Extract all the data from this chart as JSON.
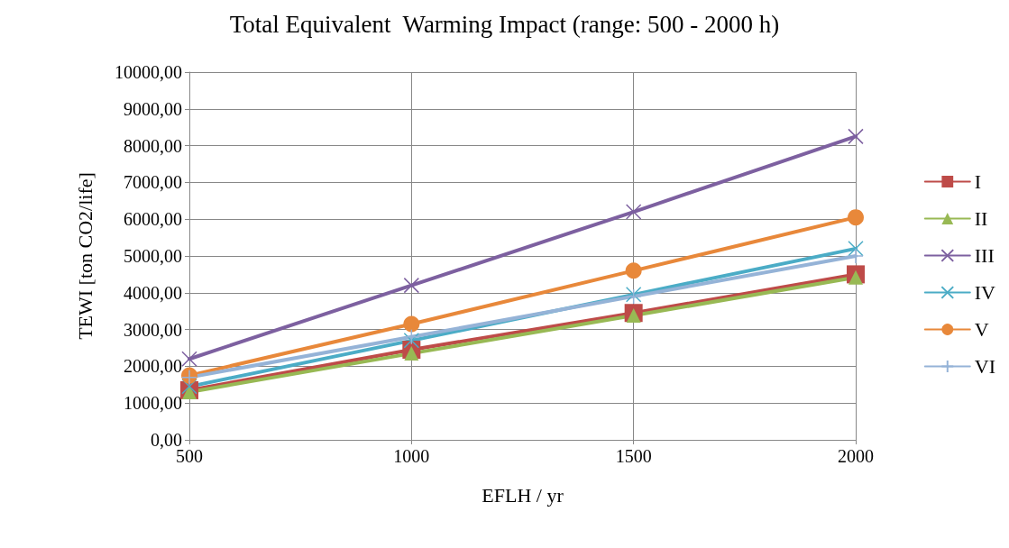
{
  "chart_data": {
    "type": "line",
    "title": "Total Equivalent  Warming Impact (range: 500 - 2000 h)",
    "xlabel": "EFLH / yr",
    "ylabel": "TEWI [ton CO2/life]",
    "x": [
      500,
      1000,
      1500,
      2000
    ],
    "series": [
      {
        "name": "I",
        "color": "#be4b48",
        "marker": "square",
        "values": [
          1350,
          2450,
          3450,
          4500
        ]
      },
      {
        "name": "II",
        "color": "#98b954",
        "marker": "triangle",
        "values": [
          1300,
          2350,
          3380,
          4420
        ]
      },
      {
        "name": "III",
        "color": "#7d60a0",
        "marker": "cross",
        "values": [
          2200,
          4200,
          6200,
          8250
        ]
      },
      {
        "name": "IV",
        "color": "#4bacc6",
        "marker": "cross",
        "values": [
          1450,
          2700,
          3950,
          5200
        ]
      },
      {
        "name": "V",
        "color": "#e8883a",
        "marker": "circle",
        "values": [
          1750,
          3150,
          4600,
          6050
        ]
      },
      {
        "name": "VI",
        "color": "#95b3d7",
        "marker": "plus",
        "values": [
          1700,
          2800,
          3900,
          5000
        ]
      }
    ],
    "xlim": [
      500,
      2000
    ],
    "xticks": [
      500,
      1000,
      1500,
      2000
    ],
    "ylim": [
      0,
      10000
    ],
    "yticks": [
      {
        "value": 0,
        "label": "0,00"
      },
      {
        "value": 1000,
        "label": "1000,00"
      },
      {
        "value": 2000,
        "label": "2000,00"
      },
      {
        "value": 3000,
        "label": "3000,00"
      },
      {
        "value": 4000,
        "label": "4000,00"
      },
      {
        "value": 5000,
        "label": "5000,00"
      },
      {
        "value": 6000,
        "label": "6000,00"
      },
      {
        "value": 7000,
        "label": "7000,00"
      },
      {
        "value": 8000,
        "label": "8000,00"
      },
      {
        "value": 9000,
        "label": "9000,00"
      },
      {
        "value": 10000,
        "label": "10000,00"
      }
    ],
    "grid": true,
    "legend": "right",
    "line_style": "solid"
  }
}
